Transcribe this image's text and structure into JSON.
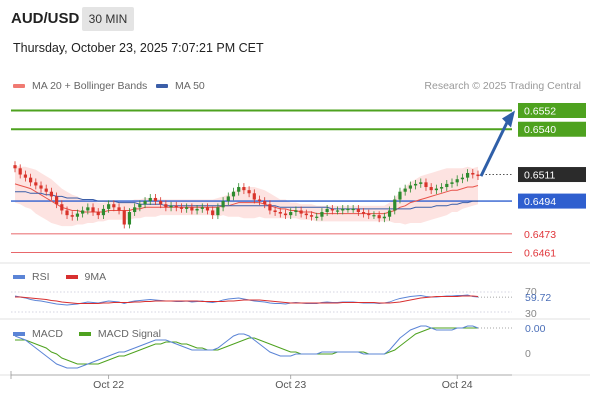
{
  "header": {
    "symbol": "AUD/USD",
    "interval": "30 MIN",
    "datetime": "Thursday, October 23, 2025 7:07:21 PM CET"
  },
  "legend": {
    "ma20_label": "MA 20 + Bollinger Bands",
    "ma50_label": "MA 50",
    "copyright": "Research © 2025 Trading Central"
  },
  "colors": {
    "candle_up": "#2e8b2e",
    "candle_down": "#d9342b",
    "ma20": "#e8534a",
    "ma50": "#3b5ea8",
    "bollinger_fill": "#fde0de",
    "target_green": "#4ea21f",
    "current_dark": "#2b2b2b",
    "support_red": "#e0353a",
    "pivot_blue": "#2f5fcf",
    "arrow": "#2f5fa8",
    "rsi": "#5b84d6",
    "rsi_ma": "#d83030",
    "macd": "#5b84d6",
    "macd_signal": "#4ea21f"
  },
  "chart_data": {
    "type": "candlestick",
    "price_levels": [
      {
        "value": 0.6552,
        "label": "0.6552",
        "kind": "target"
      },
      {
        "value": 0.654,
        "label": "0.6540",
        "kind": "target"
      },
      {
        "value": 0.6511,
        "label": "0.6511",
        "kind": "current"
      },
      {
        "value": 0.6494,
        "label": "0.6494",
        "kind": "pivot"
      },
      {
        "value": 0.6473,
        "label": "0.6473",
        "kind": "support"
      },
      {
        "value": 0.6461,
        "label": "0.6461",
        "kind": "support"
      }
    ],
    "price_range": [
      0.6455,
      0.656
    ],
    "closes": [
      0.6515,
      0.6511,
      0.6509,
      0.6506,
      0.6504,
      0.6502,
      0.65,
      0.6497,
      0.6492,
      0.6488,
      0.6485,
      0.6484,
      0.6486,
      0.6488,
      0.649,
      0.6487,
      0.6485,
      0.6489,
      0.6492,
      0.649,
      0.6488,
      0.6479,
      0.6487,
      0.649,
      0.6492,
      0.6494,
      0.6496,
      0.6494,
      0.6492,
      0.649,
      0.6491,
      0.649,
      0.6489,
      0.649,
      0.6488,
      0.6489,
      0.649,
      0.6488,
      0.6485,
      0.649,
      0.6494,
      0.6497,
      0.65,
      0.6503,
      0.6501,
      0.6499,
      0.6495,
      0.6494,
      0.6492,
      0.6488,
      0.6487,
      0.6486,
      0.6485,
      0.6487,
      0.6488,
      0.6486,
      0.6485,
      0.6484,
      0.6484,
      0.6487,
      0.6489,
      0.6488,
      0.6488,
      0.6489,
      0.6489,
      0.6489,
      0.6487,
      0.6486,
      0.6485,
      0.6485,
      0.6483,
      0.6484,
      0.6488,
      0.6495,
      0.65,
      0.6502,
      0.6504,
      0.6505,
      0.6506,
      0.6503,
      0.6501,
      0.6502,
      0.6503,
      0.6505,
      0.6506,
      0.6508,
      0.6509,
      0.6512,
      0.6511,
      0.651
    ],
    "ma20": [
      0.6505,
      0.6504,
      0.6503,
      0.6502,
      0.65,
      0.6498,
      0.6496,
      0.6494,
      0.6492,
      0.649,
      0.6489,
      0.6488,
      0.6488,
      0.6487,
      0.6487,
      0.6487,
      0.6487,
      0.6487,
      0.6488,
      0.6488,
      0.6488,
      0.6488,
      0.6488,
      0.6489,
      0.6489,
      0.649,
      0.649,
      0.649,
      0.649,
      0.649,
      0.649,
      0.649,
      0.649,
      0.649,
      0.649,
      0.649,
      0.649,
      0.649,
      0.649,
      0.649,
      0.6491,
      0.6491,
      0.6492,
      0.6493,
      0.6493,
      0.6493,
      0.6493,
      0.6493,
      0.6492,
      0.6491,
      0.649,
      0.6489,
      0.6489,
      0.6488,
      0.6488,
      0.6487,
      0.6487,
      0.6487,
      0.6486,
      0.6486,
      0.6486,
      0.6486,
      0.6486,
      0.6486,
      0.6486,
      0.6486,
      0.6486,
      0.6486,
      0.6486,
      0.6486,
      0.6486,
      0.6486,
      0.6487,
      0.6488,
      0.649,
      0.6491,
      0.6493,
      0.6494,
      0.6495,
      0.6496,
      0.6497,
      0.6498,
      0.6499,
      0.65,
      0.6501,
      0.6501,
      0.6502,
      0.6503,
      0.6503,
      0.6504
    ],
    "ma50": [
      0.65,
      0.65,
      0.65,
      0.6499,
      0.6499,
      0.6499,
      0.6498,
      0.6498,
      0.6497,
      0.6497,
      0.6496,
      0.6496,
      0.6496,
      0.6495,
      0.6495,
      0.6495,
      0.6494,
      0.6494,
      0.6494,
      0.6494,
      0.6493,
      0.6493,
      0.6493,
      0.6493,
      0.6492,
      0.6492,
      0.6492,
      0.6492,
      0.6492,
      0.6491,
      0.6491,
      0.6491,
      0.6491,
      0.6491,
      0.6491,
      0.6491,
      0.6491,
      0.6491,
      0.6491,
      0.6491,
      0.6491,
      0.6491,
      0.6491,
      0.6491,
      0.6491,
      0.6491,
      0.6491,
      0.6491,
      0.6491,
      0.6491,
      0.6491,
      0.649,
      0.649,
      0.649,
      0.649,
      0.649,
      0.649,
      0.649,
      0.649,
      0.649,
      0.649,
      0.6489,
      0.6489,
      0.6489,
      0.6489,
      0.6489,
      0.6489,
      0.6489,
      0.6489,
      0.6489,
      0.6489,
      0.6489,
      0.6489,
      0.6489,
      0.6489,
      0.6489,
      0.6489,
      0.649,
      0.649,
      0.649,
      0.649,
      0.6491,
      0.6491,
      0.6491,
      0.6492,
      0.6492,
      0.6493,
      0.6493,
      0.6494,
      0.6494
    ],
    "bb_width": [
      0.0012,
      0.0012,
      0.0013,
      0.0013,
      0.0014,
      0.0014,
      0.0014,
      0.0014,
      0.0013,
      0.0012,
      0.0011,
      0.001,
      0.0009,
      0.0008,
      0.0007,
      0.0007,
      0.0006,
      0.0006,
      0.0006,
      0.0006,
      0.0006,
      0.0006,
      0.0006,
      0.0006,
      0.0006,
      0.0006,
      0.0006,
      0.0006,
      0.0005,
      0.0005,
      0.0005,
      0.0005,
      0.0005,
      0.0005,
      0.0005,
      0.0005,
      0.0005,
      0.0005,
      0.0005,
      0.0006,
      0.0006,
      0.0007,
      0.0008,
      0.0009,
      0.001,
      0.001,
      0.001,
      0.0009,
      0.0009,
      0.0008,
      0.0007,
      0.0006,
      0.0006,
      0.0005,
      0.0005,
      0.0005,
      0.0005,
      0.0005,
      0.0005,
      0.0005,
      0.0005,
      0.0005,
      0.0005,
      0.0005,
      0.0005,
      0.0005,
      0.0005,
      0.0005,
      0.0005,
      0.0005,
      0.0005,
      0.0005,
      0.0006,
      0.0008,
      0.001,
      0.0012,
      0.0013,
      0.0014,
      0.0015,
      0.0015,
      0.0015,
      0.0015,
      0.0015,
      0.0015,
      0.0014,
      0.0014,
      0.0013,
      0.0013,
      0.0012,
      0.0012
    ],
    "x_ticks": [
      {
        "label": "Oct 22",
        "index": 18
      },
      {
        "label": "Oct 23",
        "index": 53
      },
      {
        "label": "Oct 24",
        "index": 85
      }
    ],
    "rsi": {
      "labels": [
        "70",
        "59.72",
        "30"
      ],
      "value": 59.72,
      "values": [
        62,
        60,
        58,
        55,
        53,
        52,
        50,
        48,
        46,
        45,
        44,
        45,
        46,
        48,
        50,
        49,
        48,
        50,
        52,
        51,
        50,
        47,
        50,
        52,
        53,
        54,
        55,
        54,
        53,
        52,
        52,
        51,
        51,
        52,
        50,
        51,
        52,
        50,
        49,
        51,
        54,
        56,
        57,
        58,
        56,
        54,
        52,
        51,
        50,
        48,
        47,
        47,
        46,
        48,
        49,
        48,
        47,
        47,
        47,
        49,
        50,
        49,
        49,
        50,
        50,
        50,
        49,
        48,
        48,
        48,
        47,
        48,
        50,
        54,
        57,
        59,
        61,
        62,
        63,
        61,
        60,
        60,
        61,
        62,
        62,
        63,
        63,
        64,
        61,
        60
      ],
      "ma": [
        60,
        60,
        59,
        58,
        57,
        56,
        55,
        53,
        52,
        50,
        49,
        48,
        47,
        47,
        47,
        47,
        47,
        48,
        48,
        49,
        49,
        49,
        49,
        50,
        50,
        51,
        51,
        52,
        52,
        52,
        52,
        52,
        52,
        52,
        52,
        52,
        51,
        51,
        51,
        51,
        51,
        52,
        52,
        53,
        54,
        54,
        54,
        54,
        53,
        52,
        51,
        50,
        49,
        48,
        48,
        48,
        48,
        48,
        48,
        48,
        48,
        48,
        48,
        49,
        49,
        49,
        49,
        49,
        49,
        49,
        48,
        48,
        48,
        49,
        50,
        52,
        54,
        56,
        58,
        59,
        60,
        61,
        61,
        61,
        61,
        61,
        62,
        62,
        62,
        61
      ]
    },
    "macd": {
      "labels": [
        "0.00",
        "0"
      ],
      "values": [
        0.0006,
        0.0005,
        0.0004,
        0.0002,
        0.0,
        -0.0002,
        -0.0004,
        -0.0006,
        -0.0008,
        -0.0009,
        -0.001,
        -0.001,
        -0.001,
        -0.0009,
        -0.0008,
        -0.0007,
        -0.0006,
        -0.0005,
        -0.0004,
        -0.0003,
        -0.0002,
        -0.0002,
        -0.0001,
        0.0,
        0.0001,
        0.0002,
        0.0003,
        0.0004,
        0.0004,
        0.0004,
        0.0003,
        0.0002,
        0.0001,
        0.0,
        -0.0001,
        -0.0001,
        -0.0001,
        -0.0001,
        -0.0001,
        0.0,
        0.0002,
        0.0004,
        0.0006,
        0.0007,
        0.0007,
        0.0006,
        0.0004,
        0.0002,
        0.0,
        -0.0002,
        -0.0003,
        -0.0004,
        -0.0004,
        -0.0004,
        -0.0003,
        -0.0003,
        -0.0003,
        -0.0003,
        -0.0003,
        -0.0002,
        -0.0002,
        -0.0002,
        -0.0002,
        -0.0002,
        -0.0002,
        -0.0002,
        -0.0002,
        -0.0003,
        -0.0003,
        -0.0003,
        -0.0003,
        -0.0003,
        -0.0001,
        0.0002,
        0.0005,
        0.0007,
        0.0009,
        0.001,
        0.0011,
        0.0011,
        0.001,
        0.0009,
        0.0009,
        0.0009,
        0.0009,
        0.001,
        0.001,
        0.0011,
        0.0011,
        0.001
      ],
      "signal": [
        0.0004,
        0.0004,
        0.0004,
        0.0003,
        0.0002,
        0.0001,
        0.0,
        -0.0002,
        -0.0003,
        -0.0005,
        -0.0006,
        -0.0007,
        -0.0008,
        -0.0008,
        -0.0008,
        -0.0008,
        -0.0008,
        -0.0007,
        -0.0006,
        -0.0005,
        -0.0004,
        -0.0004,
        -0.0003,
        -0.0002,
        -0.0001,
        0.0,
        0.0001,
        0.0002,
        0.0002,
        0.0003,
        0.0003,
        0.0003,
        0.0002,
        0.0002,
        0.0001,
        0.0,
        0.0,
        -0.0001,
        -0.0001,
        -0.0001,
        0.0,
        0.0001,
        0.0002,
        0.0003,
        0.0004,
        0.0005,
        0.0005,
        0.0004,
        0.0003,
        0.0002,
        0.0001,
        0.0,
        -0.0001,
        -0.0002,
        -0.0002,
        -0.0003,
        -0.0003,
        -0.0003,
        -0.0003,
        -0.0003,
        -0.0003,
        -0.0003,
        -0.0002,
        -0.0002,
        -0.0002,
        -0.0002,
        -0.0002,
        -0.0002,
        -0.0003,
        -0.0003,
        -0.0003,
        -0.0003,
        -0.0002,
        -0.0001,
        0.0001,
        0.0003,
        0.0005,
        0.0007,
        0.0008,
        0.0009,
        0.001,
        0.001,
        0.001,
        0.001,
        0.001,
        0.001,
        0.001,
        0.001,
        0.001,
        0.001
      ]
    }
  },
  "indicators": {
    "rsi_label": "RSI",
    "rsi_ma_label": "9MA",
    "macd_label": "MACD",
    "macd_signal_label": "MACD Signal"
  }
}
